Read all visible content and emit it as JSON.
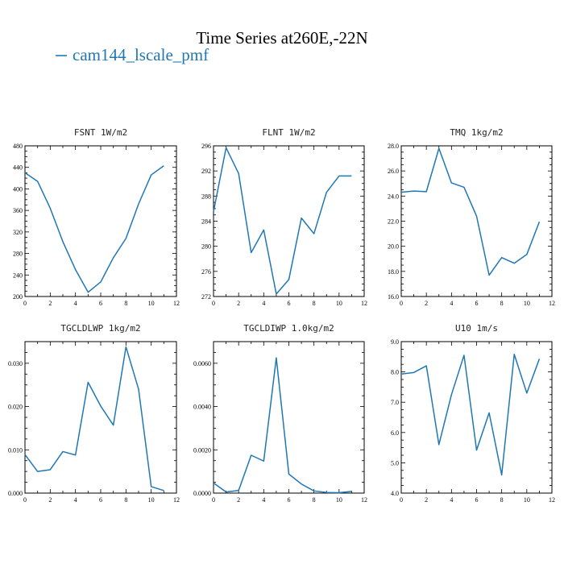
{
  "title": "Time Series at260E,-22N",
  "legend": {
    "label": "cam144_lscale_pmf",
    "color": "#1f77b4"
  },
  "chart_data": [
    {
      "type": "line",
      "title": "FSNT   1W/m2",
      "x": [
        0,
        1,
        2,
        3,
        4,
        5,
        6,
        7,
        8,
        9,
        10,
        11
      ],
      "xlim": [
        0,
        12
      ],
      "xticks": [
        0,
        2,
        4,
        6,
        8,
        10,
        12
      ],
      "ylim": [
        200,
        480
      ],
      "yticks": [
        200,
        240,
        280,
        320,
        360,
        400,
        440,
        480
      ],
      "ytick_labels": [
        "200",
        "240",
        "280",
        "320",
        "360",
        "400",
        "440",
        "480"
      ],
      "ydecimals": 0,
      "series": [
        {
          "name": "cam144_lscale_pmf",
          "values": [
            430,
            414,
            364,
            302,
            250,
            208,
            227,
            272,
            308,
            372,
            426,
            443
          ]
        }
      ]
    },
    {
      "type": "line",
      "title": "FLNT   1W/m2",
      "x": [
        0,
        1,
        2,
        3,
        4,
        5,
        6,
        7,
        8,
        9,
        10,
        11
      ],
      "xlim": [
        0,
        12
      ],
      "xticks": [
        0,
        2,
        4,
        6,
        8,
        10,
        12
      ],
      "ylim": [
        272,
        296
      ],
      "yticks": [
        272,
        276,
        280,
        284,
        288,
        292,
        296
      ],
      "ytick_labels": [
        "272",
        "276",
        "280",
        "284",
        "288",
        "292",
        "296"
      ],
      "ydecimals": 0,
      "series": [
        {
          "name": "cam144_lscale_pmf",
          "values": [
            285.5,
            295.7,
            291.6,
            279.0,
            282.6,
            272.4,
            274.7,
            284.5,
            282.0,
            288.6,
            291.2,
            291.2
          ]
        }
      ]
    },
    {
      "type": "line",
      "title": "TMQ   1kg/m2",
      "x": [
        0,
        1,
        2,
        3,
        4,
        5,
        6,
        7,
        8,
        9,
        10,
        11
      ],
      "xlim": [
        0,
        12
      ],
      "xticks": [
        0,
        2,
        4,
        6,
        8,
        10,
        12
      ],
      "ylim": [
        16,
        28
      ],
      "yticks": [
        16,
        18,
        20,
        22,
        24,
        26,
        28
      ],
      "ytick_labels": [
        "16.0",
        "18.0",
        "20.0",
        "22.0",
        "24.0",
        "26.0",
        "28.0"
      ],
      "ydecimals": 1,
      "series": [
        {
          "name": "cam144_lscale_pmf",
          "values": [
            24.3,
            24.4,
            24.35,
            27.8,
            25.05,
            24.7,
            22.4,
            17.7,
            19.1,
            18.65,
            19.35,
            21.95
          ]
        }
      ]
    },
    {
      "type": "line",
      "title": "TGCLDLWP   1kg/m2",
      "x": [
        0,
        1,
        2,
        3,
        4,
        5,
        6,
        7,
        8,
        9,
        10,
        11
      ],
      "xlim": [
        0,
        12
      ],
      "xticks": [
        0,
        2,
        4,
        6,
        8,
        10,
        12
      ],
      "ylim": [
        0,
        0.035
      ],
      "yticks": [
        0,
        0.01,
        0.02,
        0.03
      ],
      "ytick_labels": [
        "0.000",
        "0.010",
        "0.020",
        "0.030"
      ],
      "ydecimals": 3,
      "series": [
        {
          "name": "cam144_lscale_pmf",
          "values": [
            0.0089,
            0.005,
            0.0054,
            0.0096,
            0.0088,
            0.0256,
            0.0201,
            0.0157,
            0.0338,
            0.024,
            0.0015,
            0.0006
          ]
        }
      ]
    },
    {
      "type": "line",
      "title": "TGCLDIWP   1.0kg/m2",
      "x": [
        0,
        1,
        2,
        3,
        4,
        5,
        6,
        7,
        8,
        9,
        10,
        11
      ],
      "xlim": [
        0,
        12
      ],
      "xticks": [
        0,
        2,
        4,
        6,
        8,
        10,
        12
      ],
      "ylim": [
        0,
        0.007
      ],
      "yticks": [
        0,
        0.002,
        0.004,
        0.006
      ],
      "ytick_labels": [
        "0.0000",
        "0.0020",
        "0.0040",
        "0.0060"
      ],
      "ydecimals": 4,
      "series": [
        {
          "name": "cam144_lscale_pmf",
          "values": [
            0.00047,
            5e-05,
            0.00012,
            0.00175,
            0.00148,
            0.00625,
            0.00088,
            0.00042,
            0.0001,
            3e-05,
            2e-05,
            8e-05
          ]
        }
      ]
    },
    {
      "type": "line",
      "title": "U10   1m/s",
      "x": [
        0,
        1,
        2,
        3,
        4,
        5,
        6,
        7,
        8,
        9,
        10,
        11
      ],
      "xlim": [
        0,
        12
      ],
      "xticks": [
        0,
        2,
        4,
        6,
        8,
        10,
        12
      ],
      "ylim": [
        4,
        9
      ],
      "yticks": [
        4,
        5,
        6,
        7,
        8,
        9
      ],
      "ytick_labels": [
        "4.0",
        "5.0",
        "6.0",
        "7.0",
        "8.0",
        "9.0"
      ],
      "ydecimals": 1,
      "series": [
        {
          "name": "cam144_lscale_pmf",
          "values": [
            7.93,
            7.98,
            8.2,
            5.6,
            7.25,
            8.55,
            5.42,
            6.65,
            4.6,
            8.58,
            7.3,
            8.43
          ]
        }
      ]
    }
  ]
}
